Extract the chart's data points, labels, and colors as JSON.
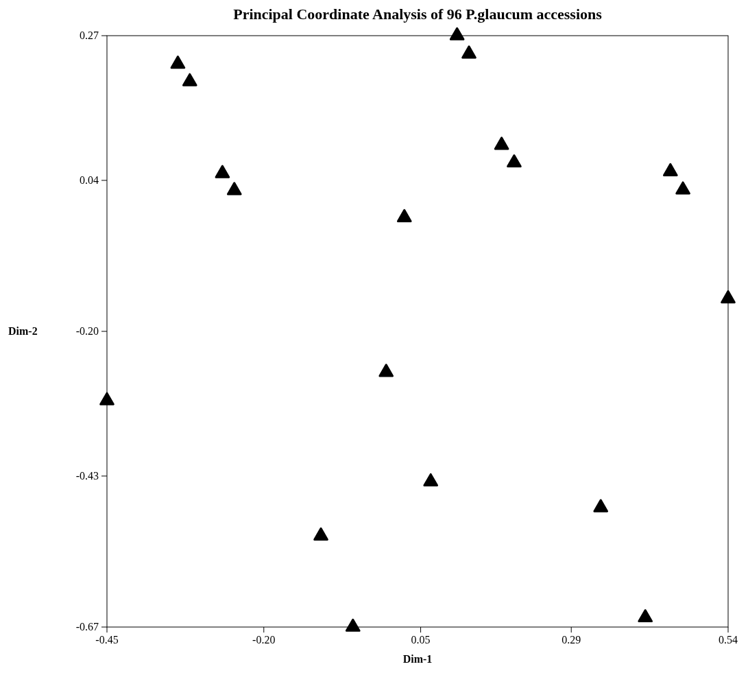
{
  "chart_data": {
    "type": "scatter",
    "title": "Principal Coordinate Analysis of 96 P.glaucum accessions",
    "xlabel": "Dim-1",
    "ylabel": "Dim-2",
    "x": [
      -0.45,
      -0.337,
      -0.318,
      -0.266,
      -0.247,
      -0.109,
      -0.058,
      -0.005,
      0.024,
      0.066,
      0.108,
      0.127,
      0.179,
      0.199,
      0.337,
      0.408,
      0.448,
      0.468,
      0.54
    ],
    "series": [
      {
        "color": "#000000",
        "values": [
          -0.31,
          0.225,
          0.197,
          0.051,
          0.024,
          -0.525,
          -0.67,
          -0.265,
          -0.019,
          -0.439,
          0.27,
          0.241,
          0.096,
          0.068,
          -0.48,
          -0.655,
          0.054,
          0.025,
          -0.148
        ]
      }
    ],
    "xlim": [
      -0.45,
      0.54
    ],
    "ylim": [
      -0.67,
      0.27
    ],
    "xticks": [
      -0.45,
      {
        "value": -0.2,
        "label": "-0.20"
      },
      0.05,
      0.29,
      0.54
    ],
    "yticks": [
      -0.67,
      -0.43,
      {
        "value": -0.2,
        "label": "-0.20"
      },
      0.04,
      0.27
    ],
    "grid": false,
    "marker": "triangle"
  }
}
